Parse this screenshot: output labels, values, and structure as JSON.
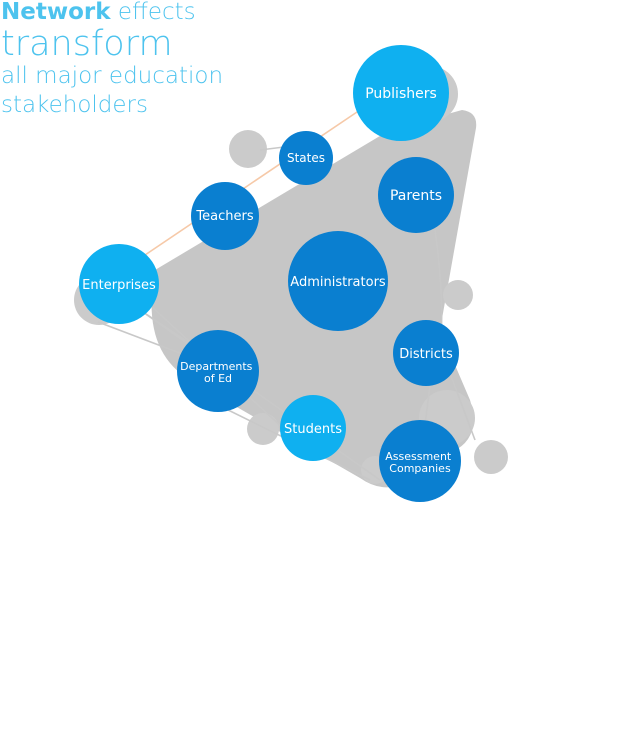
{
  "headline": {
    "bold": "Network",
    "line1_rest": " effects",
    "line2": "transform",
    "line3": "all major education",
    "line4": "stakeholders"
  },
  "colors": {
    "light_blue": "#0fb0f0",
    "dark_blue": "#0a7fd0",
    "hull_gray": "#c6c6c6",
    "satellite_gray": "#cbcbcb",
    "edge_gray": "#c8c8c8",
    "edge_peach": "#f6c9a8",
    "headline": "#4dc3ee"
  },
  "nodes": [
    {
      "id": "publishers",
      "lines": [
        "Publishers"
      ],
      "color": "light"
    },
    {
      "id": "states",
      "lines": [
        "States"
      ],
      "color": "dark"
    },
    {
      "id": "parents",
      "lines": [
        "Parents"
      ],
      "color": "dark"
    },
    {
      "id": "teachers",
      "lines": [
        "Teachers"
      ],
      "color": "dark"
    },
    {
      "id": "administrators",
      "lines": [
        "Administrators"
      ],
      "color": "dark"
    },
    {
      "id": "enterprises",
      "lines": [
        "Enterprises"
      ],
      "color": "light"
    },
    {
      "id": "districts",
      "lines": [
        "Districts"
      ],
      "color": "dark"
    },
    {
      "id": "departments-of-ed",
      "lines": [
        "Departments",
        "of Ed"
      ],
      "color": "dark"
    },
    {
      "id": "students",
      "lines": [
        "Students"
      ],
      "color": "light"
    },
    {
      "id": "assessment-companies",
      "lines": [
        "Assessment",
        "Companies"
      ],
      "color": "dark"
    }
  ]
}
